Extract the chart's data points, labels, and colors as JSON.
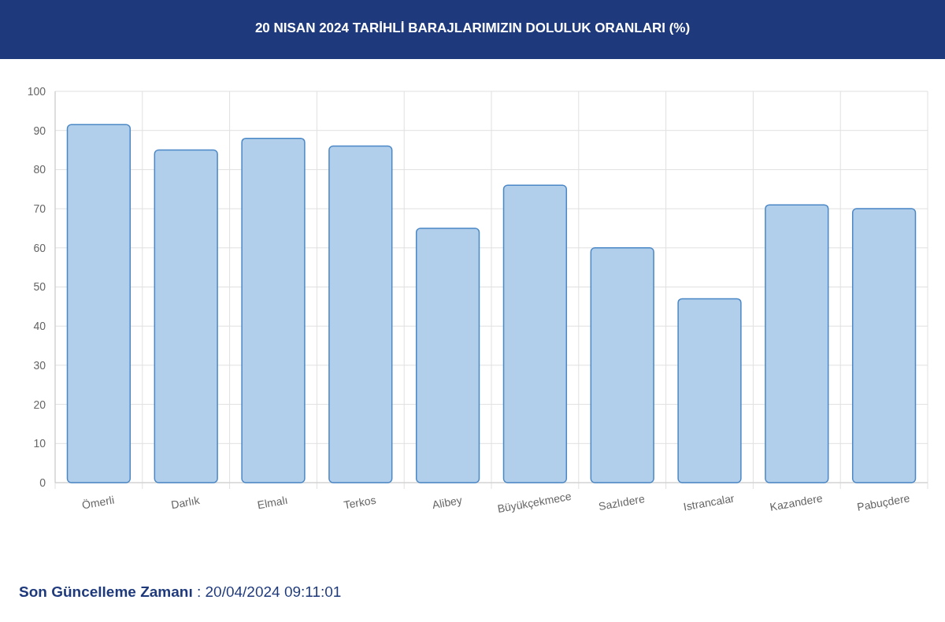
{
  "chart_data": {
    "type": "bar",
    "title": "20 NISAN 2024 TARİHLİ BARAJLARIMIZIN DOLULUK ORANLARI (%)",
    "categories": [
      "Ömerli",
      "Darlık",
      "Elmalı",
      "Terkos",
      "Alibey",
      "Büyükçekmece",
      "Sazlıdere",
      "Istrancalar",
      "Kazandere",
      "Pabuçdere"
    ],
    "values": [
      91.5,
      85,
      88,
      86,
      65,
      76,
      60,
      47,
      71,
      70
    ],
    "color": "#b1cfea",
    "ylim": [
      0,
      100
    ],
    "yticks": [
      0,
      10,
      20,
      30,
      40,
      50,
      60,
      70,
      80,
      90,
      100
    ],
    "grid": true,
    "annotations": [
      "Son Güncelleme Zamanı : 20/04/2024 09:11:01"
    ]
  }
}
